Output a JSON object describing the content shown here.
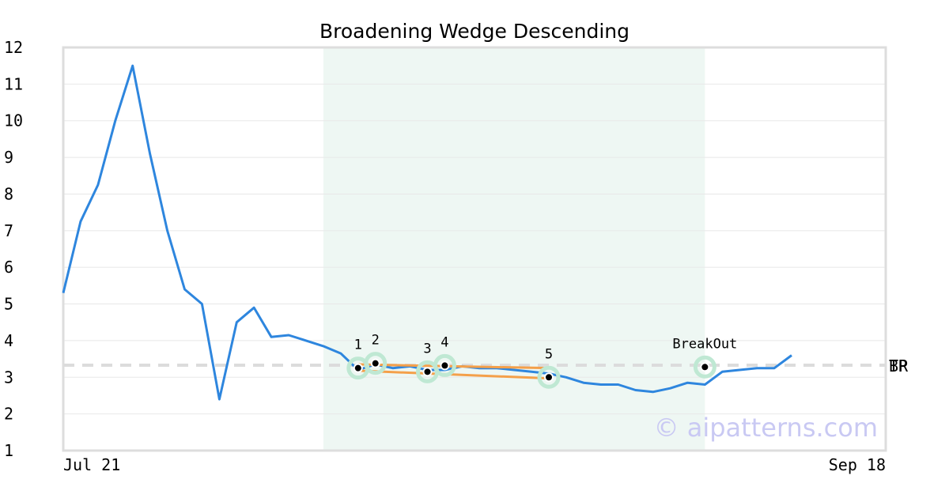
{
  "chart_data": {
    "type": "line",
    "title": "Broadening Wedge Descending",
    "ylim": [
      1,
      12
    ],
    "yticks": [
      1,
      2,
      3,
      4,
      5,
      6,
      7,
      8,
      9,
      10,
      11,
      12
    ],
    "x_labels": {
      "start": "Jul 21",
      "end": "Sep 18"
    },
    "n_points": 43,
    "series": [
      {
        "values": [
          5.3,
          7.25,
          8.25,
          10.0,
          11.5,
          9.1,
          7.0,
          5.4,
          5.0,
          2.4,
          4.5,
          4.9,
          4.1,
          4.15,
          4.0,
          3.85,
          3.65,
          3.2,
          3.35,
          3.25,
          3.3,
          3.2,
          3.2,
          3.3,
          3.25,
          3.25,
          3.2,
          3.15,
          3.1,
          3.0,
          2.85,
          2.8,
          2.8,
          2.65,
          2.6,
          2.7,
          2.85,
          2.8,
          3.15,
          3.2,
          3.25,
          3.25,
          3.6
        ],
        "color": "#2e86de"
      }
    ],
    "pattern_region": {
      "start_index": 15,
      "end_index": 37,
      "color": "#eef7f3"
    },
    "pattern_points": [
      {
        "label": "1",
        "index": 17,
        "value": 3.25
      },
      {
        "label": "2",
        "index": 18,
        "value": 3.38
      },
      {
        "label": "3",
        "index": 21,
        "value": 3.15
      },
      {
        "label": "4",
        "index": 22,
        "value": 3.32
      },
      {
        "label": "5",
        "index": 28,
        "value": 3.0
      },
      {
        "label": "BreakOut",
        "index": 37,
        "value": 3.28
      }
    ],
    "trend_lines": [
      {
        "from": {
          "index": 17,
          "value": 3.35
        },
        "to": {
          "index": 28,
          "value": 3.25
        },
        "color": "#f4a04a"
      },
      {
        "from": {
          "index": 17,
          "value": 3.18
        },
        "to": {
          "index": 28,
          "value": 2.97
        },
        "color": "#f4a04a"
      }
    ],
    "reference_line": {
      "value": 3.33,
      "labels": [
        "TP",
        "BR"
      ],
      "color": "#dcdcdc"
    },
    "grid": true,
    "watermark": "© aipatterns.com"
  }
}
